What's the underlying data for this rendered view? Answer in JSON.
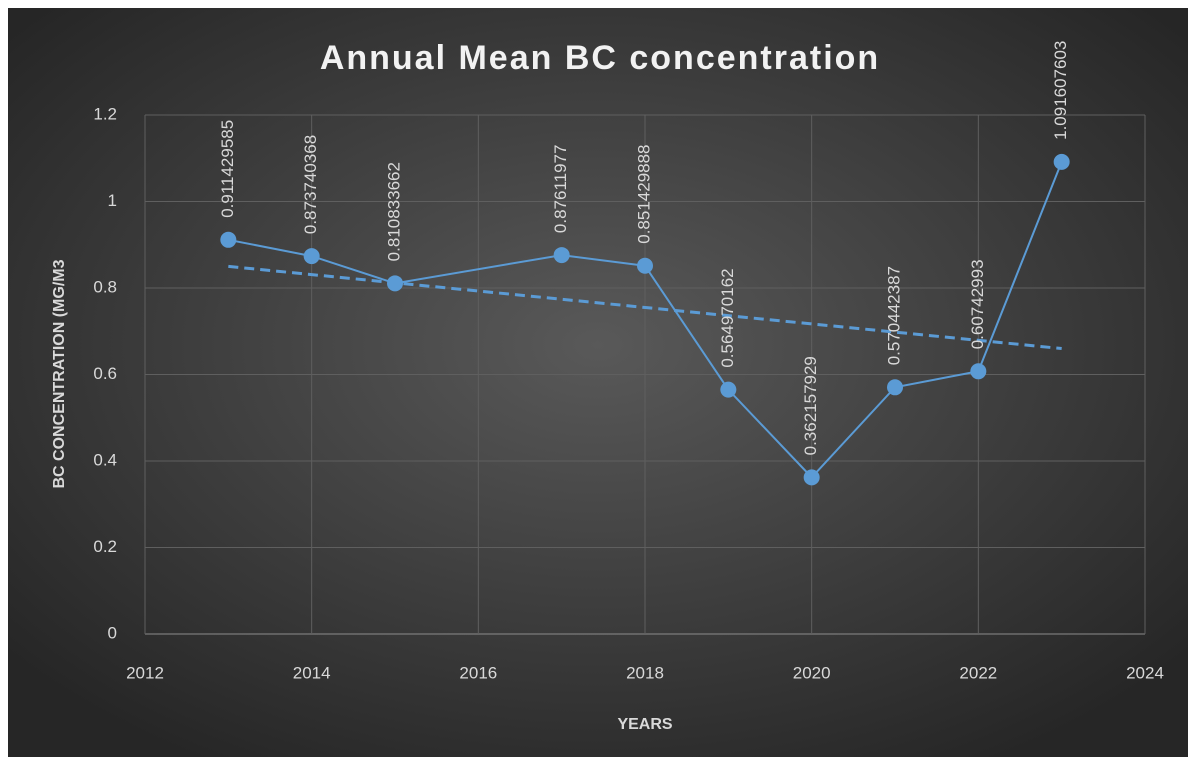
{
  "chart_data": {
    "type": "line",
    "title": "Annual Mean BC concentration",
    "x_label": "YEARS",
    "y_label": "BC CONCENTRATION (MG/M3",
    "x": [
      2013,
      2014,
      2015,
      2017,
      2018,
      2019,
      2020,
      2021,
      2022,
      2023
    ],
    "values": [
      0.911429585,
      0.873740368,
      0.810833662,
      0.87611977,
      0.851429888,
      0.564970162,
      0.362157929,
      0.570442387,
      0.60742993,
      1.091607603
    ],
    "color": "#5b9bd5",
    "trendline": {
      "x": [
        2013,
        2023
      ],
      "values": [
        0.85,
        0.66
      ],
      "color": "#5b9bd5",
      "dashed": true
    },
    "xlim": [
      2012,
      2024
    ],
    "xticks": [
      2012,
      2014,
      2016,
      2018,
      2020,
      2022,
      2024
    ],
    "ylim": [
      0,
      1.2
    ],
    "yticks": [
      0,
      0.2,
      0.4,
      0.6,
      0.8,
      1,
      1.2
    ],
    "grid": true,
    "data_labels": true
  }
}
